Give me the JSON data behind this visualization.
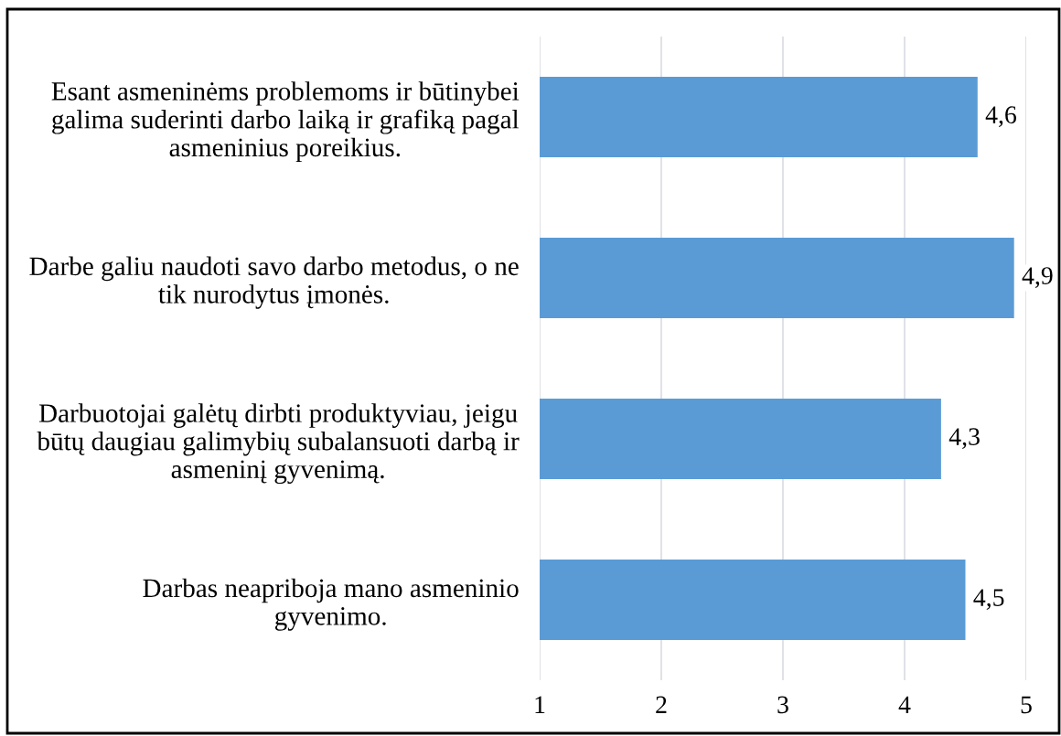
{
  "chart_data": {
    "type": "bar",
    "orientation": "horizontal",
    "categories": [
      "Esant asmeninėms problemoms ir būtinybei\ngalima suderinti darbo laiką ir grafiką pagal\nasmeninius poreikius.",
      "Darbe galiu naudoti savo darbo metodus, o ne\ntik nurodytus įmonės.",
      "Darbuotojai galėtų dirbti produktyviau, jeigu\nbūtų daugiau galimybių subalansuoti darbą ir\nasmeninį gyvenimą.",
      "Darbas neapriboja mano asmeninio\ngyvenimo."
    ],
    "values": [
      4.6,
      4.9,
      4.3,
      4.5
    ],
    "value_labels": [
      "4,6",
      "4,9",
      "4,3",
      "4,5"
    ],
    "color": "#5b9bd5",
    "xlim": [
      1,
      5
    ],
    "xticks": [
      1,
      2,
      3,
      4,
      5
    ],
    "grid": "x"
  }
}
